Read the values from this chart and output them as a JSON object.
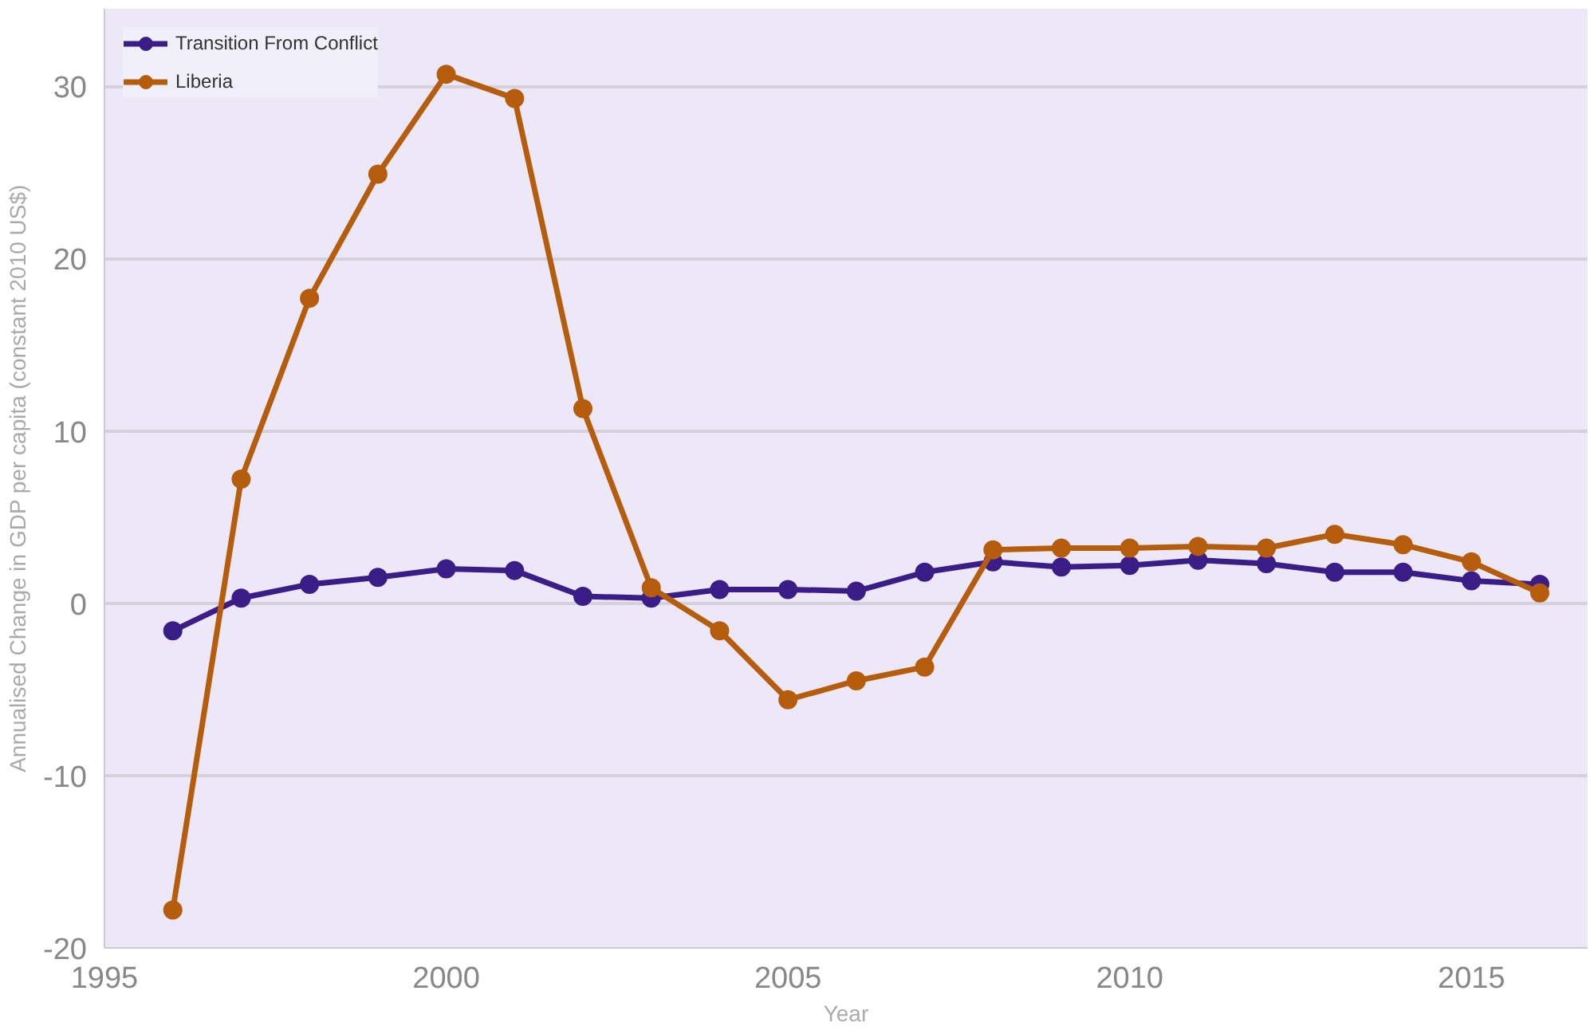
{
  "chart_data": {
    "type": "line",
    "xlabel": "Year",
    "ylabel": "Annualised Change in GDP per capita (constant 2010 US$)",
    "x": [
      1996,
      1997,
      1998,
      1999,
      2000,
      2001,
      2002,
      2003,
      2004,
      2005,
      2006,
      2007,
      2008,
      2009,
      2010,
      2011,
      2012,
      2013,
      2014,
      2015,
      2016
    ],
    "series": [
      {
        "name": "Transition From Conflict",
        "color": "#3b1d87",
        "values": [
          -1.6,
          0.3,
          1.1,
          1.5,
          2.0,
          1.9,
          0.4,
          0.3,
          0.8,
          0.8,
          0.7,
          1.8,
          2.4,
          2.1,
          2.2,
          2.5,
          2.3,
          1.8,
          1.8,
          1.3,
          1.1
        ]
      },
      {
        "name": "Liberia",
        "color": "#b55d0c",
        "values": [
          -17.8,
          7.2,
          17.7,
          24.9,
          30.7,
          29.3,
          11.3,
          0.9,
          -1.6,
          -5.6,
          -4.5,
          -3.7,
          3.1,
          3.2,
          3.2,
          3.3,
          3.2,
          4.0,
          3.4,
          2.4,
          0.6
        ]
      }
    ],
    "xlim": [
      1995,
      2016.7
    ],
    "ylim": [
      -20,
      34.5
    ],
    "xticks": [
      1995,
      2000,
      2005,
      2010,
      2015
    ],
    "yticks": [
      -20,
      -10,
      0,
      10,
      20,
      30
    ],
    "grid": "y",
    "legend": "top left",
    "marker": "circle",
    "line_style": "solid"
  }
}
